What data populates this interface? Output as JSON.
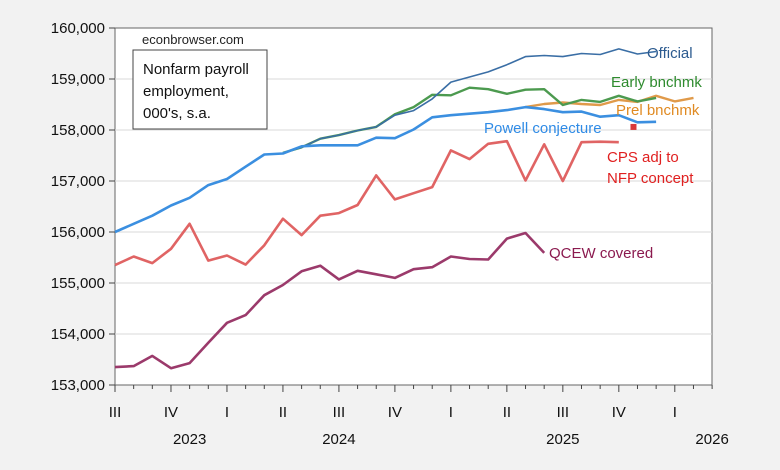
{
  "chart_data": {
    "type": "line",
    "title": "Nonfarm payroll employment, 000's, s.a.",
    "title_lines": [
      "Nonfarm payroll",
      "employment,",
      "000's, s.a."
    ],
    "source_note": "econbrowser.com",
    "xlabel": "",
    "ylabel": "",
    "ylim": [
      153000,
      160000
    ],
    "yticks": [
      153000,
      154000,
      155000,
      156000,
      157000,
      158000,
      159000,
      160000
    ],
    "ytick_labels": [
      "153,000",
      "154,000",
      "155,000",
      "156,000",
      "157,000",
      "158,000",
      "159,000",
      "160,000"
    ],
    "grid": true,
    "x_start": "2023-07",
    "x_end": "2026-03",
    "quarter_ticks": [
      {
        "label": "III",
        "month_index": 0
      },
      {
        "label": "IV",
        "month_index": 3
      },
      {
        "label": "I",
        "month_index": 6
      },
      {
        "label": "II",
        "month_index": 9
      },
      {
        "label": "III",
        "month_index": 12
      },
      {
        "label": "IV",
        "month_index": 15
      },
      {
        "label": "I",
        "month_index": 18
      },
      {
        "label": "II",
        "month_index": 21
      },
      {
        "label": "III",
        "month_index": 24
      },
      {
        "label": "IV",
        "month_index": 27
      },
      {
        "label": "I",
        "month_index": 30
      }
    ],
    "year_labels": [
      {
        "label": "2023",
        "month_index": 4
      },
      {
        "label": "2024",
        "month_index": 12
      },
      {
        "label": "2025",
        "month_index": 24
      },
      {
        "label": "2026",
        "month_index": 32
      }
    ],
    "series": [
      {
        "name": "Official",
        "color": "#3a6ea5",
        "label_color": "#2b5a8f",
        "start_index": 9,
        "values": [
          157550,
          157660,
          157830,
          157900,
          157990,
          158060,
          158290,
          158380,
          158610,
          158940,
          159040,
          159140,
          159280,
          159440,
          159460,
          159440,
          159500,
          159480,
          159590,
          159490,
          159540
        ]
      },
      {
        "name": "Early bnchmk",
        "color": "#4c9a4f",
        "label_color": "#2e8b2e",
        "start_index": 9,
        "values": [
          157550,
          157660,
          157830,
          157900,
          157990,
          158060,
          158310,
          158450,
          158690,
          158680,
          158830,
          158800,
          158710,
          158790,
          158800,
          158490,
          158590,
          158550,
          158670,
          158560,
          158630
        ]
      },
      {
        "name": "Prel bnchmk",
        "color": "#e09a4a",
        "label_color": "#e08a22",
        "start_index": 22,
        "values": [
          158450,
          158510,
          158540,
          158510,
          158490,
          158590,
          158550,
          158670,
          158560,
          158630
        ]
      },
      {
        "name": "Powell conjecture",
        "color": "#3b8fe0",
        "label_color": "#2f8be6",
        "start_index": 0,
        "values": [
          156000,
          156160,
          156320,
          156520,
          156670,
          156920,
          157040,
          157280,
          157520,
          157540,
          157680,
          157700,
          157700,
          157700,
          157850,
          157840,
          158010,
          158250,
          158290,
          158320,
          158350,
          158390,
          158450,
          158410,
          158350,
          158360,
          158260,
          158290,
          158150,
          158160
        ]
      },
      {
        "name": "CPS adj to NFP concept",
        "color": "#e06464",
        "label_color": "#e02020",
        "start_index": 0,
        "values": [
          155350,
          155520,
          155390,
          155670,
          156160,
          155440,
          155540,
          155360,
          155740,
          156260,
          155940,
          156320,
          156370,
          156530,
          157110,
          156640,
          156760,
          156880,
          157600,
          157430,
          157730,
          157780,
          157010,
          157720,
          157000,
          157760,
          157770,
          157760
        ]
      },
      {
        "name": "QCEW covered",
        "color": "#9b3a6b",
        "label_color": "#8b1a4f",
        "start_index": 0,
        "values": [
          153350,
          153370,
          153570,
          153330,
          153430,
          153830,
          154220,
          154370,
          154760,
          154960,
          155230,
          155340,
          155070,
          155240,
          155170,
          155100,
          155270,
          155310,
          155520,
          155470,
          155460,
          155870,
          155980,
          155590
        ]
      }
    ],
    "markers": [
      {
        "name": "Sep 2025 point",
        "color": "#d9383a",
        "month_index": 28,
        "value": 158060
      }
    ]
  }
}
